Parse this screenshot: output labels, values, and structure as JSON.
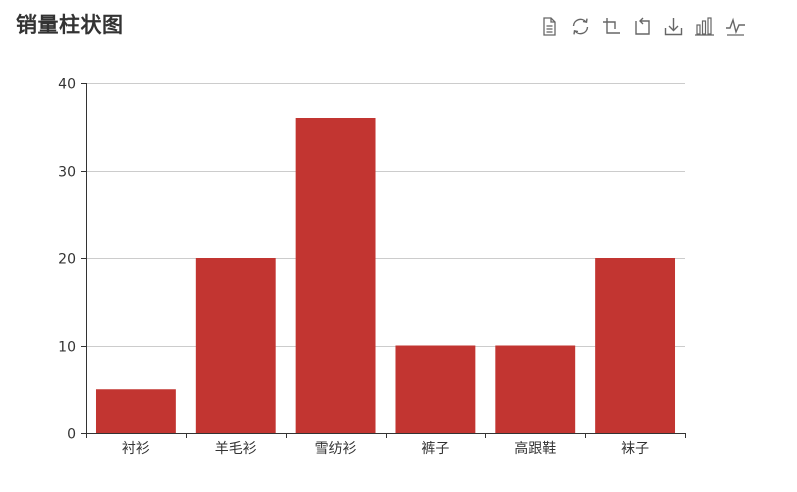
{
  "title": "销量柱状图",
  "toolbox": [
    {
      "name": "data-view",
      "icon": "document-icon"
    },
    {
      "name": "restore",
      "icon": "refresh-icon"
    },
    {
      "name": "data-zoom",
      "icon": "zoom-select-icon"
    },
    {
      "name": "zoom-reset",
      "icon": "zoom-back-icon"
    },
    {
      "name": "save-image",
      "icon": "download-icon"
    },
    {
      "name": "bar-type",
      "icon": "bar-chart-icon"
    },
    {
      "name": "line-type",
      "icon": "line-chart-icon"
    }
  ],
  "chart_data": {
    "type": "bar",
    "title": "销量柱状图",
    "categories": [
      "衬衫",
      "羊毛衫",
      "雪纺衫",
      "裤子",
      "高跟鞋",
      "袜子"
    ],
    "series": [
      {
        "values": [
          5,
          20,
          36,
          10,
          10,
          20
        ],
        "color": "#c23531"
      }
    ],
    "ylim": [
      0,
      40
    ],
    "yticks": [
      0,
      10,
      20,
      30,
      40
    ],
    "grid": true,
    "colors": {
      "bar": "#c23531",
      "axis": "#333333",
      "grid": "#cccccc"
    }
  }
}
